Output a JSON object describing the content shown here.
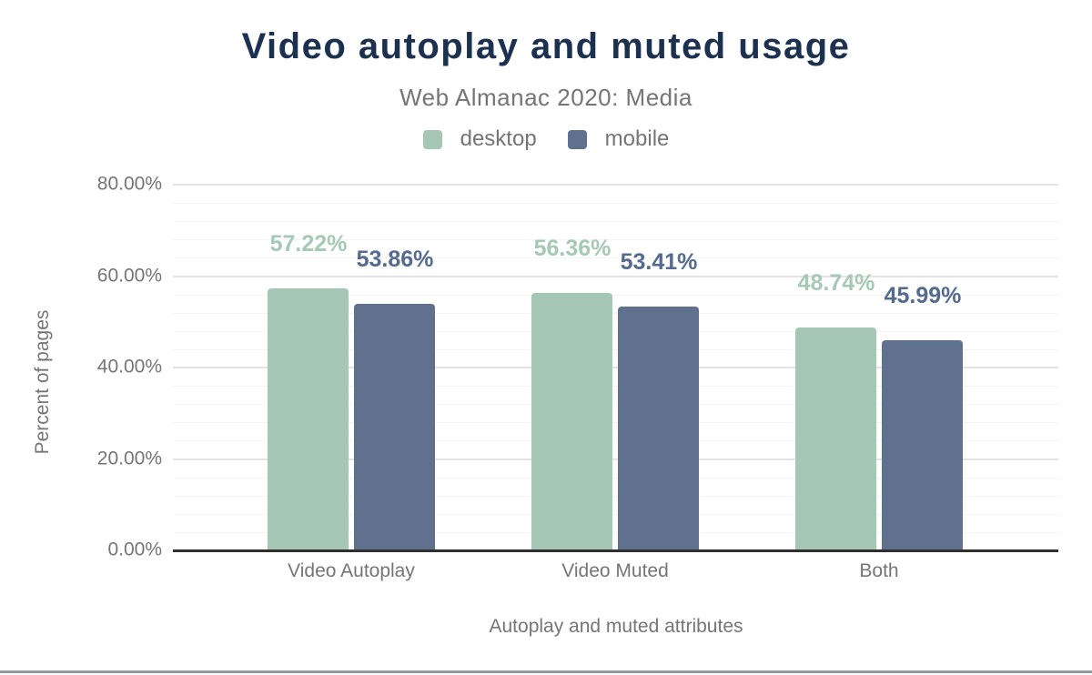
{
  "page": {
    "background": "#ffffff",
    "bottom_rule_color": "#95989e"
  },
  "header": {
    "title": "Video autoplay and muted usage",
    "subtitle": "Web Almanac 2020: Media",
    "title_color": "#1c3050",
    "subtitle_color": "#757575"
  },
  "legend": {
    "position": "top",
    "items": [
      {
        "label": "desktop",
        "color": "#a6c7b5"
      },
      {
        "label": "mobile",
        "color": "#60718f"
      }
    ]
  },
  "chart_data": {
    "type": "bar",
    "title": "Video autoplay and muted usage",
    "subtitle": "Web Almanac 2020: Media",
    "categories": [
      "Video Autoplay",
      "Video Muted",
      "Both"
    ],
    "series": [
      {
        "name": "desktop",
        "color": "#a6c7b5",
        "label_color": "#a6c9b6",
        "values": [
          57.22,
          56.36,
          48.74
        ],
        "data_labels": [
          "57.22%",
          "56.36%",
          "48.74%"
        ]
      },
      {
        "name": "mobile",
        "color": "#60718f",
        "label_color": "#546a8e",
        "values": [
          53.86,
          53.41,
          45.99
        ],
        "data_labels": [
          "53.86%",
          "53.41%",
          "45.99%"
        ]
      }
    ],
    "xlabel": "Autoplay and muted attributes",
    "ylabel": "Percent of pages",
    "ylim": [
      0,
      80
    ],
    "yticks": [
      {
        "value": 0,
        "label": "0.00%"
      },
      {
        "value": 20,
        "label": "20.00%"
      },
      {
        "value": 40,
        "label": "40.00%"
      },
      {
        "value": 60,
        "label": "60.00%"
      },
      {
        "value": 80,
        "label": "80.00%"
      }
    ],
    "grid": {
      "major_step": 20,
      "minor_step": 4,
      "major_color": "#e4e4e4",
      "minor_color": "#f4f4f4"
    },
    "axis_line_color": "#2f2f2f",
    "text_color": "#757575",
    "legend_position": "top"
  }
}
